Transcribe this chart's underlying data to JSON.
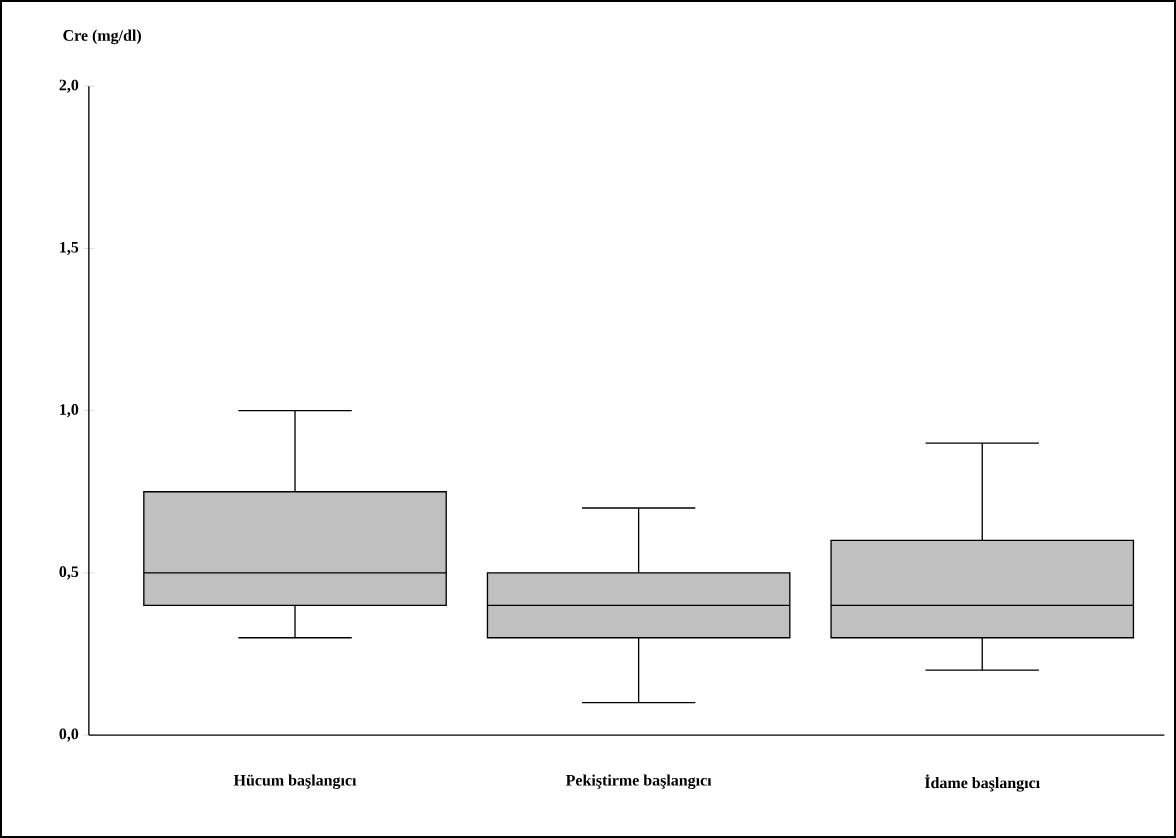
{
  "chart_data": {
    "type": "box",
    "ylabel": "Cre (mg/dl)",
    "categories": [
      "Hücum başlangıcı",
      "Pekiştirme başlangıcı",
      "İdame başlangıcı"
    ],
    "boxes": [
      {
        "low": 0.3,
        "q1": 0.4,
        "median": 0.5,
        "q3": 0.75,
        "high": 1.0
      },
      {
        "low": 0.1,
        "q1": 0.3,
        "median": 0.4,
        "q3": 0.5,
        "high": 0.7
      },
      {
        "low": 0.2,
        "q1": 0.3,
        "median": 0.4,
        "q3": 0.6,
        "high": 0.9
      }
    ],
    "color": "#c0c0c0",
    "ylim": [
      0,
      2
    ],
    "yticks": [
      {
        "value": 0,
        "label": "0,0"
      },
      {
        "value": 0.5,
        "label": "0,5"
      },
      {
        "value": 1.0,
        "label": "1,0"
      },
      {
        "value": 1.5,
        "label": "1,5"
      },
      {
        "value": 2.0,
        "label": "2,0"
      }
    ],
    "grid": false
  }
}
